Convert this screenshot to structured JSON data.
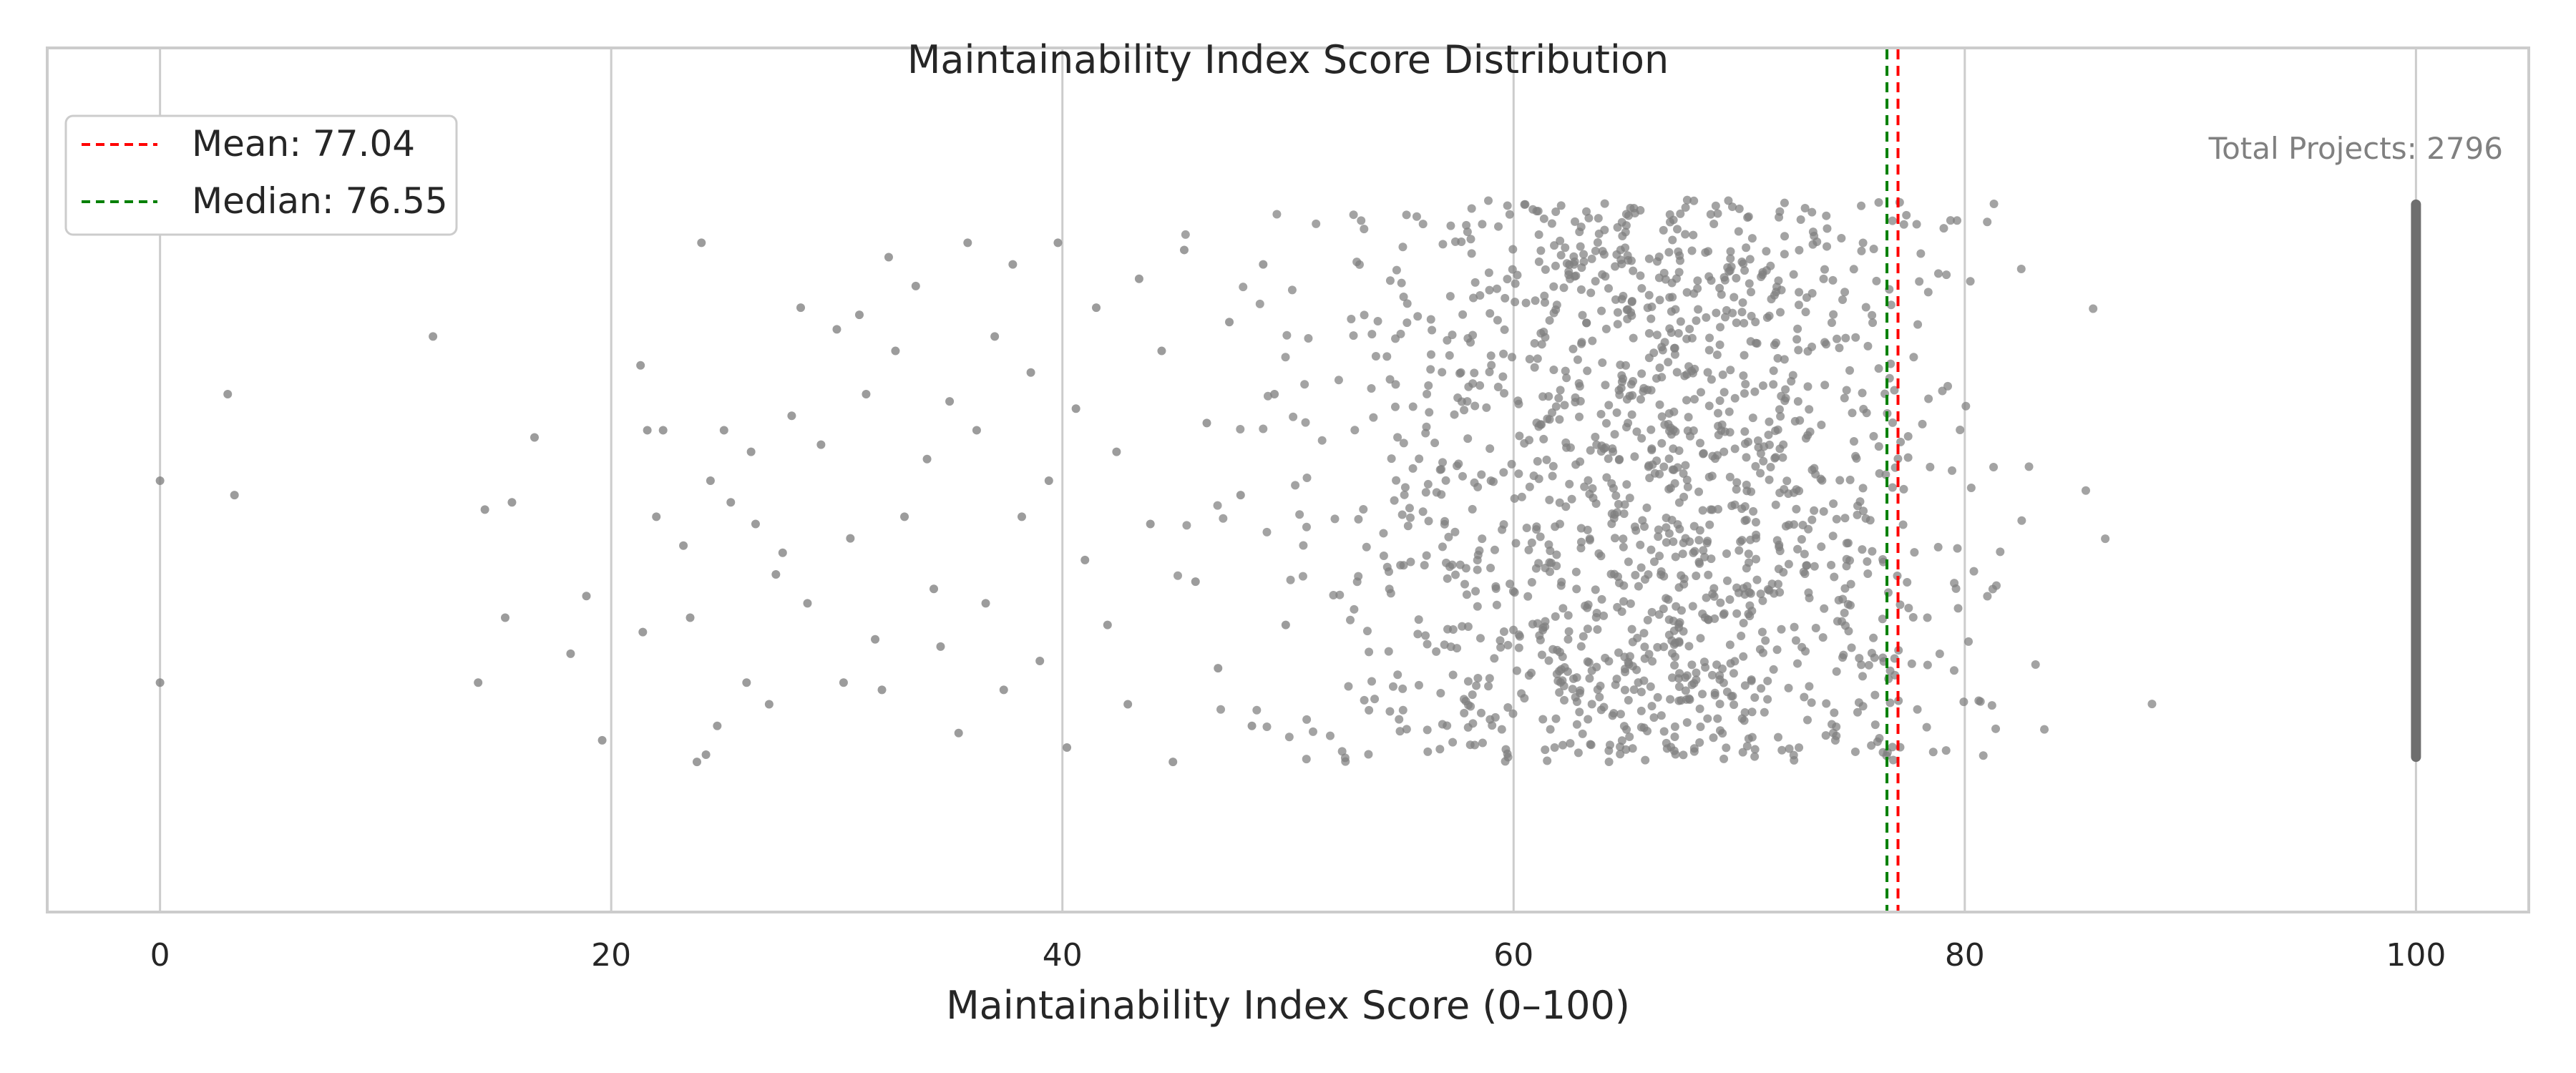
{
  "chart_data": {
    "type": "scatter",
    "title": "Maintainability Index Score Distribution",
    "xlabel": "Maintainability Index Score (0–100)",
    "ylabel": "",
    "xlim": [
      -5,
      105
    ],
    "xticks": [
      0,
      20,
      40,
      60,
      80,
      100
    ],
    "xtick_labels": [
      "0",
      "20",
      "40",
      "60",
      "80",
      "100"
    ],
    "yticks_shown": false,
    "grid": "vertical",
    "legend": {
      "placement": "top-left",
      "entries": [
        {
          "label": "Mean: 77.04",
          "color": "#ff0000",
          "style": "dashed"
        },
        {
          "label": "Median: 76.55",
          "color": "#008000",
          "style": "dashed"
        }
      ]
    },
    "annotation": "Total Projects: 2796",
    "reference_lines": [
      {
        "name": "Mean",
        "x": 77.04,
        "color": "#ff0000"
      },
      {
        "name": "Median",
        "x": 76.55,
        "color": "#008000"
      }
    ],
    "series": [
      {
        "point_color": "#808080",
        "total_points": 2796,
        "strip_cluster_at_100": true,
        "points": [
          [
            0.0,
            0.0
          ],
          [
            0.0,
            -0.28
          ],
          [
            3.0,
            0.12
          ],
          [
            3.3,
            -0.02
          ],
          [
            12.1,
            0.2
          ],
          [
            14.1,
            -0.28
          ],
          [
            14.4,
            -0.04
          ],
          [
            15.3,
            -0.19
          ],
          [
            15.6,
            -0.03
          ],
          [
            16.6,
            0.06
          ],
          [
            18.2,
            -0.24
          ],
          [
            18.9,
            -0.16
          ],
          [
            19.6,
            -0.36
          ],
          [
            21.3,
            0.16
          ],
          [
            21.4,
            -0.21
          ],
          [
            21.6,
            0.07
          ],
          [
            22.0,
            -0.05
          ],
          [
            22.3,
            0.07
          ],
          [
            23.2,
            -0.09
          ],
          [
            23.5,
            -0.19
          ],
          [
            23.8,
            -0.39
          ],
          [
            24.0,
            0.33
          ],
          [
            24.2,
            -0.38
          ],
          [
            24.4,
            0.0
          ],
          [
            24.7,
            -0.34
          ],
          [
            25.0,
            0.07
          ],
          [
            25.3,
            -0.03
          ],
          [
            26.0,
            -0.28
          ],
          [
            26.2,
            0.04
          ],
          [
            26.4,
            -0.06
          ],
          [
            27.0,
            -0.31
          ],
          [
            27.3,
            -0.13
          ],
          [
            27.6,
            -0.1
          ],
          [
            28.0,
            0.09
          ],
          [
            28.4,
            0.24
          ],
          [
            28.7,
            -0.17
          ],
          [
            29.3,
            0.05
          ],
          [
            30.0,
            0.21
          ],
          [
            30.3,
            -0.28
          ],
          [
            30.6,
            -0.08
          ],
          [
            31.0,
            0.23
          ],
          [
            31.3,
            0.12
          ],
          [
            31.7,
            -0.22
          ],
          [
            32.0,
            -0.29
          ],
          [
            32.3,
            0.31
          ],
          [
            32.6,
            0.18
          ],
          [
            33.0,
            -0.05
          ],
          [
            33.5,
            0.27
          ],
          [
            34.0,
            0.03
          ],
          [
            34.3,
            -0.15
          ],
          [
            34.6,
            -0.23
          ],
          [
            35.0,
            0.11
          ],
          [
            35.4,
            -0.35
          ],
          [
            35.8,
            0.33
          ],
          [
            36.2,
            0.07
          ],
          [
            36.6,
            -0.17
          ],
          [
            37.0,
            0.2
          ],
          [
            37.4,
            -0.29
          ],
          [
            37.8,
            0.3
          ],
          [
            38.2,
            -0.05
          ],
          [
            38.6,
            0.15
          ],
          [
            39.0,
            -0.25
          ],
          [
            39.4,
            0.0
          ],
          [
            39.8,
            0.33
          ],
          [
            40.2,
            -0.37
          ],
          [
            40.6,
            0.1
          ],
          [
            41.0,
            -0.11
          ],
          [
            41.5,
            0.24
          ],
          [
            42.0,
            -0.2
          ],
          [
            42.4,
            0.04
          ],
          [
            42.9,
            -0.31
          ],
          [
            43.4,
            0.28
          ],
          [
            43.9,
            -0.06
          ],
          [
            44.4,
            0.18
          ],
          [
            44.9,
            -0.39
          ],
          [
            45.4,
            0.32
          ],
          [
            45.9,
            -0.14
          ],
          [
            46.4,
            0.08
          ],
          [
            46.9,
            -0.26
          ],
          [
            47.4,
            0.22
          ],
          [
            47.9,
            -0.02
          ],
          [
            48.4,
            -0.34
          ],
          [
            48.9,
            0.3
          ],
          [
            49.4,
            0.12
          ],
          [
            49.9,
            -0.2
          ]
        ]
      }
    ]
  }
}
